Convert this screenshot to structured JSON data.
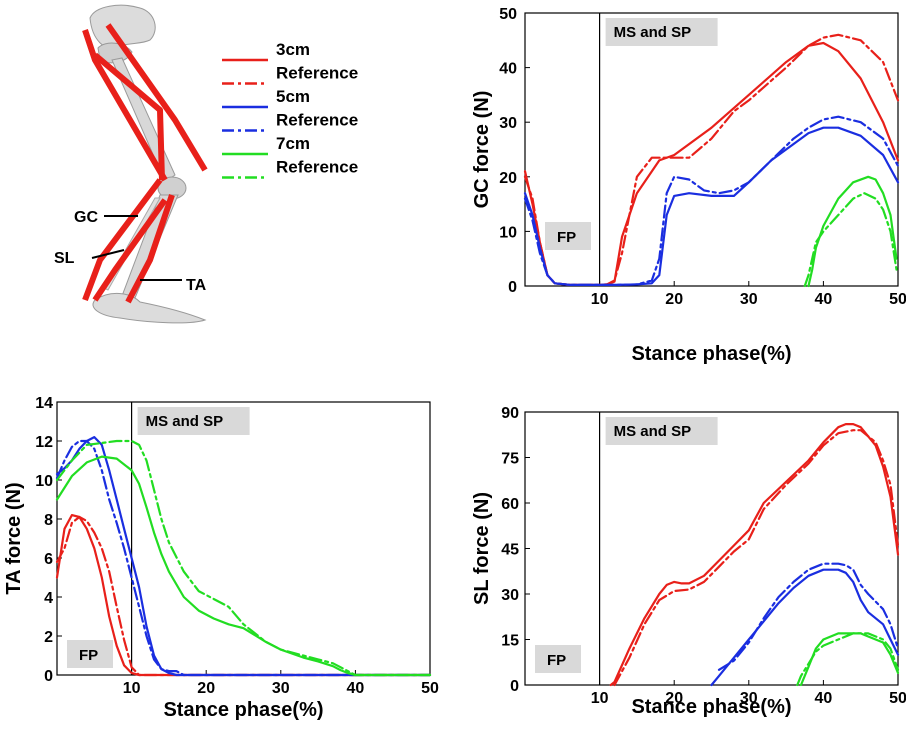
{
  "legend": {
    "entries": [
      {
        "label": "3cm",
        "color": "#e8201a",
        "style": "solid"
      },
      {
        "label": "Reference",
        "color": "#e8201a",
        "style": "dashdot"
      },
      {
        "label": "5cm",
        "color": "#1a2ee0",
        "style": "solid"
      },
      {
        "label": "Reference",
        "color": "#1a2ee0",
        "style": "dashdot"
      },
      {
        "label": "7cm",
        "color": "#22dd22",
        "style": "solid"
      },
      {
        "label": "Reference",
        "color": "#22dd22",
        "style": "dashdot"
      }
    ]
  },
  "model": {
    "labels": [
      "GC",
      "SL",
      "TA"
    ],
    "muscle_color": "#e8201a",
    "bone_color": "#d6d6d6"
  },
  "chart_data": [
    {
      "id": "gc",
      "type": "line",
      "xlabel": "Stance phase(%)",
      "ylabel": "GC force (N)",
      "xlim": [
        0,
        50
      ],
      "ylim": [
        0,
        50
      ],
      "xticks": [
        10,
        20,
        30,
        40,
        50
      ],
      "yticks": [
        0,
        10,
        20,
        30,
        40,
        50
      ],
      "divider_x": 10,
      "annotations": {
        "left": "FP",
        "right": "MS and SP"
      },
      "series": [
        {
          "name": "3cm",
          "color": "#e8201a",
          "style": "solid",
          "x": [
            0,
            1,
            2,
            3,
            4,
            6,
            8,
            10,
            11,
            12,
            13,
            15,
            18,
            20,
            25,
            30,
            35,
            38,
            40,
            42,
            45,
            48,
            50
          ],
          "y": [
            21,
            15,
            8,
            2,
            0.5,
            0.2,
            0.2,
            0.2,
            0.3,
            0.8,
            9,
            17,
            23,
            24,
            29,
            35,
            41,
            44,
            44.5,
            43,
            38,
            30,
            23
          ]
        },
        {
          "name": "Reference",
          "color": "#e8201a",
          "style": "dashdot",
          "x": [
            0,
            1,
            2,
            3,
            4,
            6,
            8,
            10,
            11,
            12,
            13,
            14,
            15,
            17,
            20,
            22,
            25,
            28,
            30,
            35,
            38,
            40,
            42,
            45,
            48,
            50
          ],
          "y": [
            20,
            16,
            8,
            2,
            0.5,
            0.2,
            0.2,
            0.2,
            0.3,
            1,
            6,
            13,
            20,
            23.5,
            23.5,
            23.5,
            27,
            32,
            34,
            40,
            44,
            45.5,
            46,
            45,
            41,
            34
          ]
        },
        {
          "name": "5cm",
          "color": "#1a2ee0",
          "style": "solid",
          "x": [
            0,
            1,
            2,
            3,
            4,
            6,
            8,
            10,
            12,
            15,
            17,
            18,
            19,
            20,
            22,
            25,
            28,
            30,
            33,
            36,
            38,
            40,
            42,
            45,
            48,
            50
          ],
          "y": [
            17,
            13,
            7,
            2,
            0.5,
            0.2,
            0.2,
            0.2,
            0.2,
            0.3,
            0.5,
            2,
            13,
            16.5,
            17,
            16.5,
            16.5,
            19,
            23,
            26,
            28,
            29,
            29,
            27.5,
            24,
            19
          ]
        },
        {
          "name": "Reference",
          "color": "#1a2ee0",
          "style": "dashdot",
          "x": [
            0,
            1,
            2,
            3,
            4,
            6,
            8,
            10,
            12,
            15,
            17,
            18,
            19,
            20,
            22,
            24,
            26,
            28,
            30,
            33,
            36,
            38,
            40,
            42,
            45,
            48,
            50
          ],
          "y": [
            16,
            12,
            6,
            2,
            0.5,
            0.2,
            0.2,
            0.2,
            0.2,
            0.3,
            1,
            5,
            17,
            20,
            19.5,
            17.5,
            17,
            17.5,
            19,
            23,
            27,
            29,
            30.5,
            31,
            30,
            27,
            22
          ]
        },
        {
          "name": "7cm",
          "color": "#22dd22",
          "style": "solid",
          "x": [
            38,
            38.5,
            39,
            40,
            42,
            44,
            46,
            47,
            48,
            49,
            49.8
          ],
          "y": [
            0,
            3,
            7,
            11,
            16,
            19,
            20,
            19.5,
            17,
            13,
            5
          ]
        },
        {
          "name": "Reference",
          "color": "#22dd22",
          "style": "dashdot",
          "x": [
            37.5,
            38,
            38.5,
            39,
            40,
            42,
            44,
            45.5,
            47,
            48,
            49,
            49.8
          ],
          "y": [
            0,
            2,
            5,
            8,
            10,
            13,
            16,
            17,
            16,
            14,
            10,
            3
          ]
        }
      ]
    },
    {
      "id": "ta",
      "type": "line",
      "xlabel": "Stance phase(%)",
      "ylabel": "TA force (N)",
      "xlim": [
        0,
        50
      ],
      "ylim": [
        0,
        14
      ],
      "xticks": [
        10,
        20,
        30,
        40,
        50
      ],
      "yticks": [
        0,
        2,
        4,
        6,
        8,
        10,
        12,
        14
      ],
      "divider_x": 10,
      "annotations": {
        "left": "FP",
        "right": "MS and SP"
      },
      "series": [
        {
          "name": "3cm",
          "color": "#e8201a",
          "style": "solid",
          "x": [
            0,
            1,
            2,
            3,
            4,
            5,
            6,
            7,
            8,
            9,
            10,
            11,
            12,
            15,
            20,
            30,
            40,
            50
          ],
          "y": [
            5,
            7.5,
            8.2,
            8.1,
            7.5,
            6.5,
            5,
            3,
            1.5,
            0.5,
            0.1,
            0,
            0,
            0,
            0,
            0,
            0,
            0
          ]
        },
        {
          "name": "Reference",
          "color": "#e8201a",
          "style": "dashdot",
          "x": [
            0,
            1,
            2,
            3,
            4,
            5,
            6,
            7,
            8,
            9,
            10,
            11,
            12,
            15,
            20,
            30,
            40,
            50
          ],
          "y": [
            5.8,
            6.5,
            7.8,
            8.1,
            7.9,
            7.3,
            6.5,
            5.3,
            3.5,
            1.8,
            0.4,
            0,
            0,
            0,
            0,
            0,
            0,
            0
          ]
        },
        {
          "name": "5cm",
          "color": "#1a2ee0",
          "style": "solid",
          "x": [
            0,
            1,
            2,
            3,
            4,
            5,
            6,
            7,
            8,
            9,
            10,
            11,
            12,
            13,
            14,
            15,
            16,
            20,
            30,
            40,
            50
          ],
          "y": [
            10.3,
            10.6,
            11,
            11.6,
            12,
            12.2,
            11.8,
            10.5,
            9,
            7.5,
            6,
            4.5,
            2.5,
            1,
            0.3,
            0.1,
            0,
            0,
            0,
            0,
            0
          ]
        },
        {
          "name": "Reference",
          "color": "#1a2ee0",
          "style": "dashdot",
          "x": [
            0,
            1,
            2,
            3,
            4,
            5,
            6,
            7,
            8,
            9,
            10,
            11,
            12,
            13,
            14,
            15,
            16,
            17,
            20,
            30,
            40,
            50
          ],
          "y": [
            10.1,
            11,
            11.7,
            12,
            12,
            11.6,
            10.5,
            9,
            7.8,
            6.5,
            5,
            3.5,
            2,
            0.8,
            0.3,
            0.2,
            0.2,
            0,
            0,
            0,
            0,
            0
          ]
        },
        {
          "name": "7cm",
          "color": "#22dd22",
          "style": "solid",
          "x": [
            0,
            2,
            4,
            6,
            8,
            10,
            11,
            12,
            13,
            14,
            15,
            17,
            19,
            21,
            23,
            25,
            28,
            30,
            33,
            35,
            37,
            38,
            39,
            40,
            41,
            45,
            50
          ],
          "y": [
            9,
            10.2,
            10.9,
            11.2,
            11.1,
            10.5,
            9.8,
            8.6,
            7.3,
            6.2,
            5.3,
            4,
            3.3,
            2.9,
            2.6,
            2.4,
            1.7,
            1.3,
            0.9,
            0.7,
            0.45,
            0.25,
            0.1,
            0,
            0,
            0,
            0
          ]
        },
        {
          "name": "Reference",
          "color": "#22dd22",
          "style": "dashdot",
          "x": [
            0,
            2,
            4,
            6,
            8,
            9,
            10,
            11,
            12,
            13,
            14,
            15,
            17,
            19,
            21,
            23,
            25,
            28,
            30,
            33,
            35,
            37,
            38,
            39,
            40,
            41,
            45,
            50
          ],
          "y": [
            10,
            11,
            11.8,
            11.9,
            12,
            12,
            12,
            11.8,
            11,
            9.5,
            8,
            6.8,
            5.3,
            4.3,
            3.9,
            3.5,
            2.6,
            1.7,
            1.3,
            1,
            0.8,
            0.6,
            0.4,
            0.2,
            0,
            0,
            0,
            0
          ]
        }
      ]
    },
    {
      "id": "sl",
      "type": "line",
      "xlabel": "Stance phase(%)",
      "ylabel": "SL force (N)",
      "xlim": [
        0,
        50
      ],
      "ylim": [
        0,
        90
      ],
      "xticks": [
        10,
        20,
        30,
        40,
        50
      ],
      "yticks": [
        0,
        15,
        30,
        45,
        60,
        75,
        90
      ],
      "divider_x": 10,
      "annotations": {
        "left": "FP",
        "right": "MS and SP"
      },
      "series": [
        {
          "name": "3cm",
          "color": "#e8201a",
          "style": "solid",
          "x": [
            11.5,
            12,
            14,
            16,
            18,
            19,
            20,
            21,
            22,
            24,
            26,
            28,
            30,
            32,
            35,
            38,
            40,
            42,
            43,
            44,
            45,
            47,
            48,
            49,
            50
          ],
          "y": [
            0,
            1,
            12,
            22,
            30,
            33,
            34,
            33.5,
            33.5,
            36,
            41,
            46,
            51,
            60,
            67,
            74,
            80,
            85,
            86,
            86,
            85,
            79,
            72,
            62,
            43
          ]
        },
        {
          "name": "Reference",
          "color": "#e8201a",
          "style": "dashdot",
          "x": [
            12,
            14,
            16,
            18,
            20,
            22,
            24,
            26,
            28,
            30,
            32,
            35,
            38,
            40,
            42,
            44,
            45,
            47,
            48,
            49,
            50
          ],
          "y": [
            0,
            9,
            20,
            28,
            31,
            31.5,
            34,
            39,
            44,
            48,
            58,
            66,
            73,
            79,
            83,
            84,
            84,
            80,
            74,
            66,
            46
          ]
        },
        {
          "name": "5cm",
          "color": "#1a2ee0",
          "style": "solid",
          "x": [
            25,
            26,
            28,
            30,
            32,
            34,
            36,
            38,
            40,
            42,
            43,
            44,
            45,
            46,
            48,
            49,
            50
          ],
          "y": [
            0,
            3,
            9,
            15,
            21,
            27,
            32,
            36,
            38,
            38,
            37,
            34,
            28,
            24,
            20,
            15,
            10
          ]
        },
        {
          "name": "Reference",
          "color": "#1a2ee0",
          "style": "dashdot",
          "x": [
            26,
            28,
            30,
            32,
            34,
            36,
            38,
            40,
            42,
            43,
            44,
            45,
            46,
            48,
            49,
            50
          ],
          "y": [
            5,
            8,
            14,
            22,
            29,
            34,
            38,
            40,
            40,
            39.5,
            38,
            33,
            30,
            25,
            20,
            12
          ]
        },
        {
          "name": "7cm",
          "color": "#22dd22",
          "style": "solid",
          "x": [
            37,
            38,
            39,
            40,
            42,
            44,
            45,
            46,
            48,
            49,
            50
          ],
          "y": [
            0,
            6,
            12,
            15,
            17,
            17,
            17,
            16,
            14,
            10,
            4
          ]
        },
        {
          "name": "Reference",
          "color": "#22dd22",
          "style": "dashdot",
          "x": [
            36.5,
            37,
            38,
            39,
            40,
            42,
            44,
            46,
            48,
            49,
            50
          ],
          "y": [
            0,
            3,
            7,
            11,
            13,
            15,
            17,
            17,
            15,
            12,
            5
          ]
        }
      ]
    }
  ]
}
